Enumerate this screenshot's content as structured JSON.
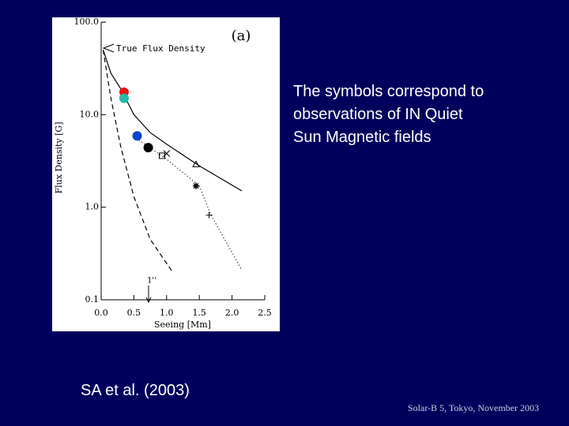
{
  "slide": {
    "note": "The symbols correspond to observations of IN Quiet Sun Magnetic fields",
    "citation": "SA et al. (2003)",
    "footer": "Solar-B 5, Tokyo, November 2003"
  },
  "chart_data": {
    "type": "line",
    "title": "(a)",
    "annotation": "True Flux Density",
    "marker_label": "1''",
    "x_label": "Seeing [Mm]",
    "y_label": "Flux Density [G]",
    "xlim": [
      0,
      2.5
    ],
    "ylim": [
      0.1,
      100
    ],
    "log_y": true,
    "xticks": [
      {
        "value": 0,
        "label": "0.0"
      },
      0.5,
      {
        "value": 1,
        "label": "1.0"
      },
      1.5,
      {
        "value": 2,
        "label": "2.0"
      },
      2.5
    ],
    "yticks": [
      0.1,
      {
        "value": 1,
        "label": "1.0"
      },
      {
        "value": 10,
        "label": "10.0"
      },
      {
        "value": 100,
        "label": "100.0"
      }
    ],
    "series": [
      {
        "color": "#000000",
        "dash": "solid",
        "x": [
          0.03,
          0.15,
          0.3,
          0.5,
          0.75,
          1.0,
          1.5,
          2.15
        ],
        "values": [
          50,
          28,
          19,
          10,
          6.4,
          4.8,
          2.8,
          1.5
        ]
      },
      {
        "color": "#000000",
        "dash": "dashed",
        "x": [
          0.03,
          0.15,
          0.3,
          0.5,
          0.75,
          1.09
        ],
        "values": [
          50,
          15,
          4.5,
          1.3,
          0.45,
          0.2
        ]
      },
      {
        "color": "#000000",
        "dash": "dotted",
        "x": [
          0.5,
          1.0,
          1.5,
          1.68,
          2.15
        ],
        "values": [
          5.8,
          3.3,
          1.7,
          0.82,
          0.21
        ]
      }
    ],
    "points": [
      {
        "x": 0.35,
        "y": 17.5,
        "symbol": "circle",
        "color": "#ee1111"
      },
      {
        "x": 0.35,
        "y": 15,
        "symbol": "circle",
        "color": "#22bbaa"
      },
      {
        "x": 0.55,
        "y": 5.9,
        "symbol": "circle",
        "color": "#1144cc"
      },
      {
        "x": 0.72,
        "y": 4.4,
        "symbol": "circle",
        "color": "#000000"
      },
      {
        "x": 0.93,
        "y": 3.6,
        "symbol": "square",
        "color": "#000000"
      },
      {
        "x": 1.0,
        "y": 3.8,
        "symbol": "x",
        "color": "#000000"
      },
      {
        "x": 1.45,
        "y": 2.9,
        "symbol": "triangle",
        "color": "#000000"
      },
      {
        "x": 1.45,
        "y": 1.7,
        "symbol": "asterisk",
        "color": "#000000"
      },
      {
        "x": 1.65,
        "y": 0.82,
        "symbol": "plus",
        "color": "#000000"
      }
    ]
  }
}
